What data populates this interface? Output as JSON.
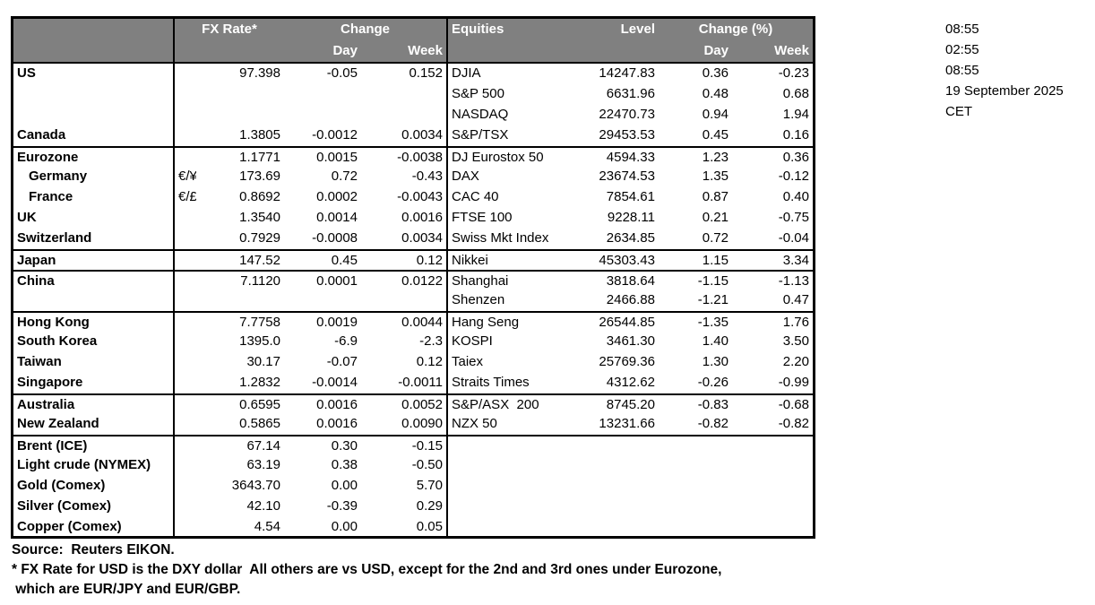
{
  "header": {
    "fx": {
      "rate": "FX Rate*",
      "change": "Change",
      "day": "Day",
      "week": "Week"
    },
    "eq": {
      "name": "Equities",
      "level": "Level",
      "change": "Change (%)",
      "day": "Day",
      "week": "Week"
    }
  },
  "rows": [
    {
      "l": "US",
      "s": "",
      "r": "97.398",
      "d": "-0.05",
      "w": "0.152",
      "e": "DJIA",
      "v": "14247.83",
      "ed": "0.36",
      "ew": "-0.23",
      "g": false,
      "i": false
    },
    {
      "l": "",
      "s": "",
      "r": "",
      "d": "",
      "w": "",
      "e": "S&P 500",
      "v": "6631.96",
      "ed": "0.48",
      "ew": "0.68",
      "g": false,
      "i": false
    },
    {
      "l": "",
      "s": "",
      "r": "",
      "d": "",
      "w": "",
      "e": "NASDAQ",
      "v": "22470.73",
      "ed": "0.94",
      "ew": "1.94",
      "g": false,
      "i": false
    },
    {
      "l": "Canada",
      "s": "",
      "r": "1.3805",
      "d": "-0.0012",
      "w": "0.0034",
      "e": "S&P/TSX",
      "v": "29453.53",
      "ed": "0.45",
      "ew": "0.16",
      "g": false,
      "i": false
    },
    {
      "l": "Eurozone",
      "s": "",
      "r": "1.1771",
      "d": "0.0015",
      "w": "-0.0038",
      "e": "DJ Eurostox 50",
      "v": "4594.33",
      "ed": "1.23",
      "ew": "0.36",
      "g": true,
      "i": false
    },
    {
      "l": "Germany",
      "s": "€/¥",
      "r": "173.69",
      "d": "0.72",
      "w": "-0.43",
      "e": "DAX",
      "v": "23674.53",
      "ed": "1.35",
      "ew": "-0.12",
      "g": false,
      "i": true
    },
    {
      "l": "France",
      "s": "€/£",
      "r": "0.8692",
      "d": "0.0002",
      "w": "-0.0043",
      "e": "CAC 40",
      "v": "7854.61",
      "ed": "0.87",
      "ew": "0.40",
      "g": false,
      "i": true
    },
    {
      "l": "UK",
      "s": "",
      "r": "1.3540",
      "d": "0.0014",
      "w": "0.0016",
      "e": "FTSE 100",
      "v": "9228.11",
      "ed": "0.21",
      "ew": "-0.75",
      "g": false,
      "i": false
    },
    {
      "l": "Switzerland",
      "s": "",
      "r": "0.7929",
      "d": "-0.0008",
      "w": "0.0034",
      "e": "Swiss Mkt Index",
      "v": "2634.85",
      "ed": "0.72",
      "ew": "-0.04",
      "g": false,
      "i": false
    },
    {
      "l": "Japan",
      "s": "",
      "r": "147.52",
      "d": "0.45",
      "w": "0.12",
      "e": "Nikkei",
      "v": "45303.43",
      "ed": "1.15",
      "ew": "3.34",
      "g": true,
      "i": false
    },
    {
      "l": "China",
      "s": "",
      "r": "7.1120",
      "d": "0.0001",
      "w": "0.0122",
      "e": "Shanghai",
      "v": "3818.64",
      "ed": "-1.15",
      "ew": "-1.13",
      "g": true,
      "i": false
    },
    {
      "l": "",
      "s": "",
      "r": "",
      "d": "",
      "w": "",
      "e": "Shenzen",
      "v": "2466.88",
      "ed": "-1.21",
      "ew": "0.47",
      "g": false,
      "i": false
    },
    {
      "l": "Hong Kong",
      "s": "",
      "r": "7.7758",
      "d": "0.0019",
      "w": "0.0044",
      "e": "Hang Seng",
      "v": "26544.85",
      "ed": "-1.35",
      "ew": "1.76",
      "g": true,
      "i": false
    },
    {
      "l": "South Korea",
      "s": "",
      "r": "1395.0",
      "d": "-6.9",
      "w": "-2.3",
      "e": "KOSPI",
      "v": "3461.30",
      "ed": "1.40",
      "ew": "3.50",
      "g": false,
      "i": false
    },
    {
      "l": "Taiwan",
      "s": "",
      "r": "30.17",
      "d": "-0.07",
      "w": "0.12",
      "e": "Taiex",
      "v": "25769.36",
      "ed": "1.30",
      "ew": "2.20",
      "g": false,
      "i": false
    },
    {
      "l": "Singapore",
      "s": "",
      "r": "1.2832",
      "d": "-0.0014",
      "w": "-0.0011",
      "e": "Straits Times",
      "v": "4312.62",
      "ed": "-0.26",
      "ew": "-0.99",
      "g": false,
      "i": false
    },
    {
      "l": "Australia",
      "s": "",
      "r": "0.6595",
      "d": "0.0016",
      "w": "0.0052",
      "e": "S&P/ASX  200",
      "v": "8745.20",
      "ed": "-0.83",
      "ew": "-0.68",
      "g": true,
      "i": false
    },
    {
      "l": "New Zealand",
      "s": "",
      "r": "0.5865",
      "d": "0.0016",
      "w": "0.0090",
      "e": "NZX 50",
      "v": "13231.66",
      "ed": "-0.82",
      "ew": "-0.82",
      "g": false,
      "i": false
    },
    {
      "l": "Brent (ICE)",
      "s": "",
      "r": "67.14",
      "d": "0.30",
      "w": "-0.15",
      "e": "",
      "v": "",
      "ed": "",
      "ew": "",
      "g": true,
      "i": false
    },
    {
      "l": "Light crude (NYMEX)",
      "s": "",
      "r": "63.19",
      "d": "0.38",
      "w": "-0.50",
      "e": "",
      "v": "",
      "ed": "",
      "ew": "",
      "g": false,
      "i": false
    },
    {
      "l": "Gold (Comex)",
      "s": "",
      "r": "3643.70",
      "d": "0.00",
      "w": "5.70",
      "e": "",
      "v": "",
      "ed": "",
      "ew": "",
      "g": false,
      "i": false
    },
    {
      "l": "Silver (Comex)",
      "s": "",
      "r": "42.10",
      "d": "-0.39",
      "w": "0.29",
      "e": "",
      "v": "",
      "ed": "",
      "ew": "",
      "g": false,
      "i": false
    },
    {
      "l": "Copper (Comex)",
      "s": "",
      "r": "4.54",
      "d": "0.00",
      "w": "0.05",
      "e": "",
      "v": "",
      "ed": "",
      "ew": "",
      "g": false,
      "i": false
    }
  ],
  "sidebar": {
    "times": [
      "08:55",
      "02:55",
      "08:55",
      "19 September 2025",
      "CET"
    ]
  },
  "notes": [
    "Source:  Reuters EIKON.",
    "* FX Rate for USD is the DXY dollar  All others are vs USD, except for the 2nd and 3rd ones under Eurozone,",
    " which are EUR/JPY and EUR/GBP."
  ],
  "colors": {
    "header_bg": "#808080",
    "header_text": "#ffffff",
    "text": "#000000",
    "border": "#000000"
  }
}
